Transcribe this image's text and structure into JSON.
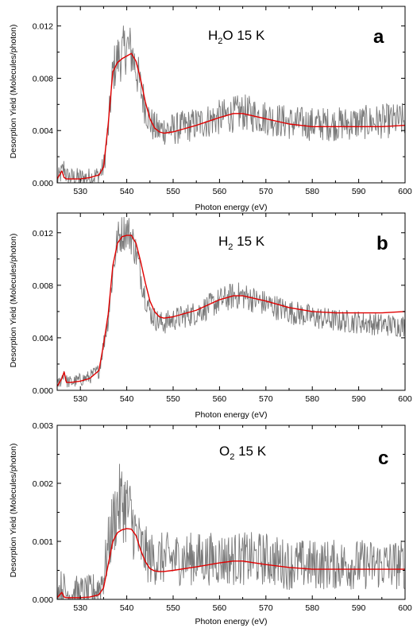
{
  "chart_data": [
    {
      "type": "line",
      "panel_letter": "a",
      "annotation": {
        "species": "H",
        "subscript": "2",
        "rest": "O 15 K"
      },
      "xlabel": "Photon energy (eV)",
      "ylabel": "Desorption Yield (Molecules/photon)",
      "xlim": [
        525,
        600
      ],
      "ylim": [
        0,
        0.0135
      ],
      "xticks": [
        530,
        540,
        550,
        560,
        570,
        580,
        590,
        600
      ],
      "yticks": [
        0,
        0.004,
        0.008,
        0.012
      ],
      "ytick_labels": [
        "0.000",
        "0.004",
        "0.008",
        "0.012"
      ],
      "grid": false,
      "series": [
        {
          "style": "noisy-data",
          "color": "#7a7a7a",
          "x": [
            525.0,
            526.0,
            526.5,
            527.0,
            528.0,
            530.0,
            532.0,
            534.0,
            535.0,
            536.0,
            537.0,
            538.0,
            539.0,
            540.0,
            541.0,
            542.0,
            543.0,
            544.0,
            545.0,
            546.0,
            547.0,
            548.0,
            550.0,
            555.0,
            560.0,
            565.0,
            570.0,
            575.0,
            580.0,
            585.0,
            590.0,
            595.0,
            600.0
          ],
          "y": [
            0.0002,
            0.0008,
            0.0012,
            0.0005,
            0.0004,
            0.0004,
            0.0004,
            0.0006,
            0.0012,
            0.004,
            0.0085,
            0.0095,
            0.0098,
            0.0105,
            0.01,
            0.0088,
            0.0072,
            0.0058,
            0.0047,
            0.0042,
            0.004,
            0.0041,
            0.0041,
            0.0045,
            0.005,
            0.0054,
            0.005,
            0.0046,
            0.0045,
            0.0045,
            0.0046,
            0.0047,
            0.0048
          ],
          "noise": 0.0011
        },
        {
          "style": "fit",
          "color": "#e00000",
          "x": [
            525.0,
            526.0,
            526.5,
            527.0,
            528.0,
            530.0,
            532.0,
            534.0,
            535.0,
            536.0,
            537.0,
            538.0,
            539.0,
            540.0,
            541.0,
            542.0,
            543.0,
            544.0,
            545.0,
            546.0,
            547.0,
            548.0,
            550.0,
            555.0,
            560.0,
            563.0,
            565.0,
            570.0,
            575.0,
            580.0,
            585.0,
            590.0,
            595.0,
            600.0
          ],
          "y": [
            0.0003,
            0.0009,
            0.0004,
            0.0003,
            0.0003,
            0.0003,
            0.0004,
            0.0006,
            0.0012,
            0.0045,
            0.0085,
            0.0092,
            0.0095,
            0.0097,
            0.0099,
            0.0093,
            0.0079,
            0.0062,
            0.0049,
            0.0042,
            0.0039,
            0.0038,
            0.0039,
            0.0044,
            0.005,
            0.0053,
            0.0053,
            0.0049,
            0.0045,
            0.0043,
            0.0043,
            0.0043,
            0.0043,
            0.0044
          ]
        }
      ]
    },
    {
      "type": "line",
      "panel_letter": "b",
      "annotation": {
        "species": "H",
        "subscript": "2",
        "rest": " 15 K"
      },
      "xlabel": "Photon energy (eV)",
      "ylabel": "Desorption Yield (Molecules/photon)",
      "xlim": [
        525,
        600
      ],
      "ylim": [
        0,
        0.0135
      ],
      "xticks": [
        530,
        540,
        550,
        560,
        570,
        580,
        590,
        600
      ],
      "yticks": [
        0,
        0.004,
        0.008,
        0.012
      ],
      "ytick_labels": [
        "0.000",
        "0.004",
        "0.008",
        "0.012"
      ],
      "grid": false,
      "series": [
        {
          "style": "noisy-data",
          "color": "#7a7a7a",
          "x": [
            525.0,
            526.0,
            526.5,
            527.0,
            528.0,
            530.0,
            532.0,
            534.0,
            535.0,
            536.0,
            537.0,
            538.0,
            539.0,
            540.0,
            541.0,
            542.0,
            543.0,
            544.0,
            545.0,
            546.0,
            547.0,
            548.0,
            550.0,
            555.0,
            560.0,
            563.0,
            565.0,
            570.0,
            575.0,
            580.0,
            585.0,
            590.0,
            595.0,
            600.0
          ],
          "y": [
            0.0003,
            0.0009,
            0.0015,
            0.0007,
            0.0006,
            0.0008,
            0.001,
            0.0015,
            0.0035,
            0.0055,
            0.009,
            0.0115,
            0.012,
            0.0122,
            0.0117,
            0.0105,
            0.0088,
            0.0072,
            0.006,
            0.0055,
            0.0052,
            0.0051,
            0.0054,
            0.0059,
            0.0068,
            0.0072,
            0.0072,
            0.0066,
            0.006,
            0.0056,
            0.0053,
            0.0052,
            0.005,
            0.0049
          ],
          "noise": 0.0007
        },
        {
          "style": "fit",
          "color": "#e00000",
          "x": [
            525.0,
            526.0,
            526.5,
            527.0,
            528.0,
            530.0,
            532.0,
            534.0,
            535.0,
            536.0,
            537.0,
            538.0,
            539.0,
            540.0,
            541.0,
            542.0,
            543.0,
            544.0,
            545.0,
            546.0,
            547.0,
            548.0,
            550.0,
            555.0,
            560.0,
            563.0,
            565.0,
            570.0,
            575.0,
            580.0,
            585.0,
            590.0,
            595.0,
            600.0
          ],
          "y": [
            0.0003,
            0.0009,
            0.0014,
            0.0006,
            0.0006,
            0.0007,
            0.0009,
            0.0015,
            0.0035,
            0.0058,
            0.0095,
            0.0112,
            0.0117,
            0.0118,
            0.0118,
            0.0112,
            0.0098,
            0.0082,
            0.0068,
            0.006,
            0.0056,
            0.0055,
            0.0056,
            0.0061,
            0.0069,
            0.0072,
            0.0072,
            0.0068,
            0.0063,
            0.006,
            0.0059,
            0.0059,
            0.0059,
            0.006
          ]
        }
      ]
    },
    {
      "type": "line",
      "panel_letter": "c",
      "annotation": {
        "species": "O",
        "subscript": "2",
        "rest": " 15 K"
      },
      "xlabel": "Photon energy (eV)",
      "ylabel": "Desorption Yield (Molecules/photon)",
      "xlim": [
        525,
        600
      ],
      "ylim": [
        0,
        0.003
      ],
      "xticks": [
        530,
        540,
        550,
        560,
        570,
        580,
        590,
        600
      ],
      "yticks": [
        0,
        0.001,
        0.002,
        0.003
      ],
      "ytick_labels": [
        "0.000",
        "0.001",
        "0.002",
        "0.003"
      ],
      "grid": false,
      "series": [
        {
          "style": "noisy-data",
          "color": "#7a7a7a",
          "x": [
            525.0,
            526.0,
            527.0,
            528.0,
            530.0,
            532.0,
            534.0,
            535.0,
            536.0,
            537.0,
            538.0,
            539.0,
            540.0,
            541.0,
            542.0,
            543.0,
            544.0,
            545.0,
            546.0,
            547.0,
            548.0,
            550.0,
            555.0,
            560.0,
            565.0,
            570.0,
            575.0,
            580.0,
            585.0,
            590.0,
            595.0,
            600.0
          ],
          "y": [
            0.0001,
            0.0002,
            0.0001,
            0.0001,
            0.0001,
            0.0001,
            0.0002,
            0.0004,
            0.0009,
            0.0013,
            0.0016,
            0.0017,
            0.0016,
            0.0014,
            0.0011,
            0.0009,
            0.0008,
            0.0007,
            0.0007,
            0.0007,
            0.0007,
            0.0007,
            0.0007,
            0.0007,
            0.0007,
            0.0007,
            0.0006,
            0.0006,
            0.0006,
            0.0006,
            0.0006,
            0.0006
          ],
          "noise": 0.00045
        },
        {
          "style": "fit",
          "color": "#e00000",
          "x": [
            525.0,
            526.0,
            526.5,
            527.0,
            528.0,
            530.0,
            532.0,
            534.0,
            535.0,
            536.0,
            537.0,
            538.0,
            539.0,
            540.0,
            541.0,
            542.0,
            543.0,
            544.0,
            545.0,
            546.0,
            547.0,
            548.0,
            550.0,
            555.0,
            560.0,
            563.0,
            565.0,
            570.0,
            575.0,
            580.0,
            585.0,
            590.0,
            595.0,
            600.0
          ],
          "y": [
            3e-05,
            0.00012,
            4e-05,
            3e-05,
            3e-05,
            3e-05,
            4e-05,
            8e-05,
            0.0002,
            0.0006,
            0.001,
            0.00115,
            0.0012,
            0.00122,
            0.00121,
            0.0011,
            0.00085,
            0.00065,
            0.00053,
            0.00049,
            0.00048,
            0.00048,
            0.0005,
            0.00056,
            0.00063,
            0.00066,
            0.00066,
            0.0006,
            0.00055,
            0.00052,
            0.00052,
            0.00052,
            0.00052,
            0.00052
          ]
        }
      ]
    }
  ]
}
